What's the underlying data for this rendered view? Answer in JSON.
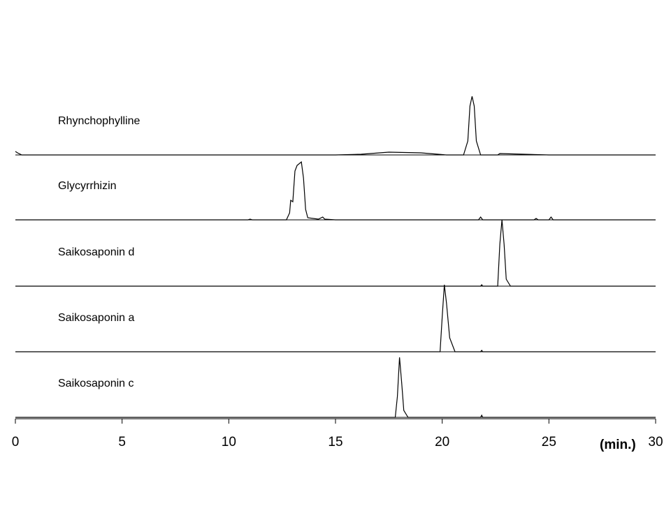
{
  "chart_data": {
    "type": "line",
    "x_label": "(min.)",
    "xlim": [
      0,
      30
    ],
    "xticks": [
      0,
      5,
      10,
      15,
      20,
      25,
      30
    ],
    "series": [
      {
        "name": "Rhynchophylline",
        "color": "#000000",
        "x": [
          0,
          0.1,
          0.3,
          5,
          10,
          15,
          16.2,
          17.5,
          19,
          20.2,
          21,
          21.2,
          21.3,
          21.4,
          21.5,
          21.6,
          21.8,
          22.6,
          22.7,
          25,
          30
        ],
        "values": [
          5,
          3,
          0,
          0,
          0,
          0,
          1,
          4,
          3,
          0,
          0,
          20,
          70,
          84,
          70,
          20,
          0,
          0,
          2,
          0,
          0
        ]
      },
      {
        "name": "Glycyrrhizin",
        "color": "#000000",
        "x": [
          0,
          10.9,
          11,
          11.1,
          12.7,
          12.85,
          12.9,
          13.0,
          13.1,
          13.2,
          13.4,
          13.5,
          13.6,
          13.7,
          14.2,
          14.4,
          14.5,
          15,
          21.7,
          21.8,
          21.9,
          24.3,
          24.4,
          24.5,
          25,
          25.1,
          25.2,
          30
        ],
        "values": [
          0,
          0,
          1,
          0,
          0,
          10,
          28,
          26,
          70,
          78,
          83,
          60,
          15,
          3,
          1,
          4,
          1,
          0,
          0,
          4,
          0,
          0,
          2,
          0,
          0,
          4,
          0,
          0
        ]
      },
      {
        "name": "Saikosaponin d",
        "color": "#000000",
        "x": [
          0,
          21.8,
          21.85,
          21.9,
          22.6,
          22.7,
          22.8,
          22.9,
          23.0,
          23.2,
          30
        ],
        "values": [
          0,
          0,
          2,
          0,
          0,
          60,
          95,
          60,
          10,
          0,
          0
        ]
      },
      {
        "name": "Saikosaponin a",
        "color": "#000000",
        "x": [
          0,
          19.9,
          20.0,
          20.1,
          20.2,
          20.35,
          20.6,
          21.8,
          21.85,
          21.9,
          30
        ],
        "values": [
          0,
          0,
          50,
          96,
          70,
          20,
          0,
          0,
          2,
          0,
          0
        ]
      },
      {
        "name": "Saikosaponin c",
        "color": "#000000",
        "x": [
          0,
          17.8,
          17.9,
          18.0,
          18.1,
          18.2,
          18.4,
          21.8,
          21.85,
          21.9,
          30
        ],
        "values": [
          0,
          0,
          30,
          86,
          50,
          10,
          0,
          0,
          3,
          0,
          0
        ]
      }
    ]
  }
}
